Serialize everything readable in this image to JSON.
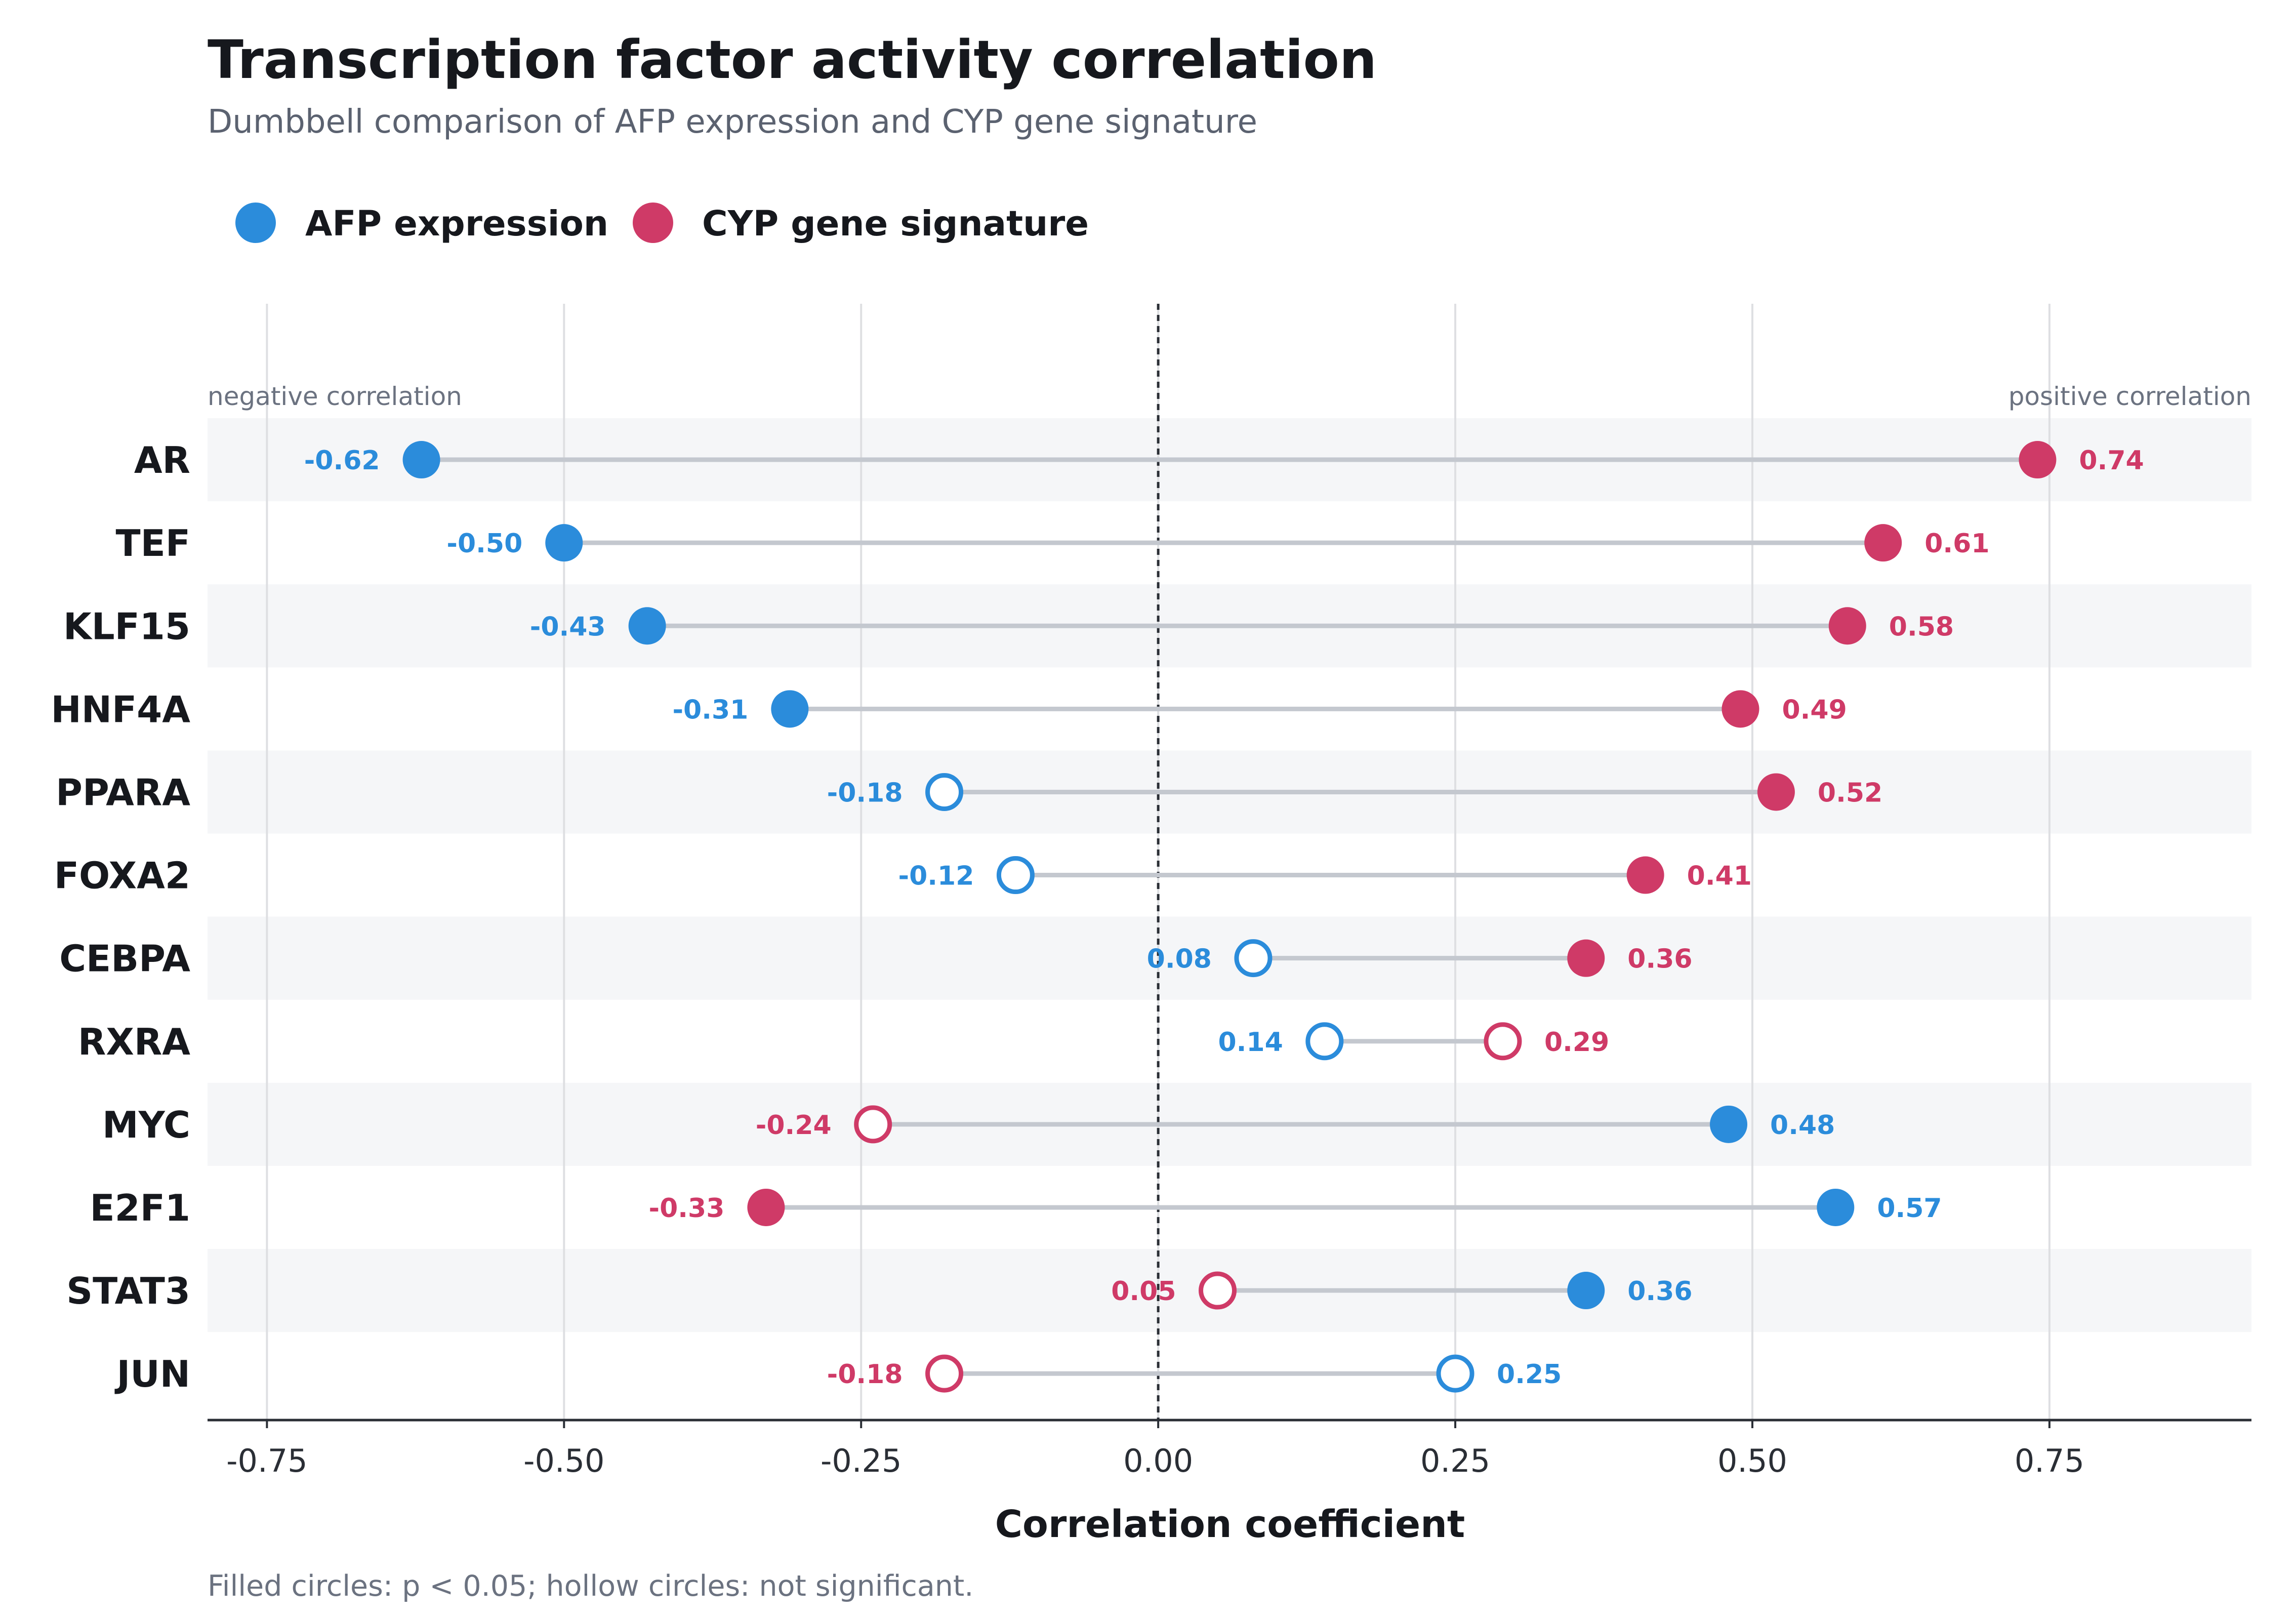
{
  "chart_data": {
    "type": "dumbbell",
    "title": "Transcription factor activity correlation",
    "subtitle": "Dumbbell comparison of AFP expression and CYP gene signature",
    "xlabel": "Correlation coefficient",
    "xlim": [
      -0.8,
      0.92
    ],
    "xticks": [
      -0.75,
      -0.5,
      -0.25,
      0.0,
      0.25,
      0.5,
      0.75
    ],
    "xtick_labels": [
      "-0.75",
      "-0.50",
      "-0.25",
      "0.00",
      "0.25",
      "0.50",
      "0.75"
    ],
    "reference_line": 0,
    "grid": true,
    "legend_position": "top-left",
    "annotations": {
      "left": "negative correlation",
      "right": "positive correlation"
    },
    "note": "Filled circles: p < 0.05; hollow circles: not significant.",
    "categories": [
      "AR",
      "TEF",
      "KLF15",
      "HNF4A",
      "PPARA",
      "FOXA2",
      "CEBPA",
      "RXRA",
      "MYC",
      "E2F1",
      "STAT3",
      "JUN"
    ],
    "series": [
      {
        "name": "AFP expression",
        "color": "#2b8cdb",
        "values": [
          -0.62,
          -0.5,
          -0.43,
          -0.31,
          -0.18,
          -0.12,
          0.08,
          0.14,
          0.48,
          0.57,
          0.36,
          0.25
        ],
        "labels": [
          "-0.62",
          "-0.50",
          "-0.43",
          "-0.31",
          "-0.18",
          "-0.12",
          "0.08",
          "0.14",
          "0.48",
          "0.57",
          "0.36",
          "0.25"
        ],
        "significant": [
          true,
          true,
          true,
          true,
          false,
          false,
          false,
          false,
          true,
          true,
          true,
          false
        ]
      },
      {
        "name": "CYP gene signature",
        "color": "#cf3a67",
        "values": [
          0.74,
          0.61,
          0.58,
          0.49,
          0.52,
          0.41,
          0.36,
          0.29,
          -0.24,
          -0.33,
          0.05,
          -0.18
        ],
        "labels": [
          "0.74",
          "0.61",
          "0.58",
          "0.49",
          "0.52",
          "0.41",
          "0.36",
          "0.29",
          "-0.24",
          "-0.33",
          "0.05",
          "-0.18"
        ],
        "significant": [
          true,
          true,
          true,
          true,
          true,
          true,
          true,
          false,
          false,
          true,
          false,
          false
        ]
      }
    ],
    "colors": {
      "connector": "#c4c8cf",
      "band": "#f5f6f8",
      "grid": "#dedfe2",
      "axis": "#2a2e35",
      "zero_line": "#2a2e35"
    }
  }
}
